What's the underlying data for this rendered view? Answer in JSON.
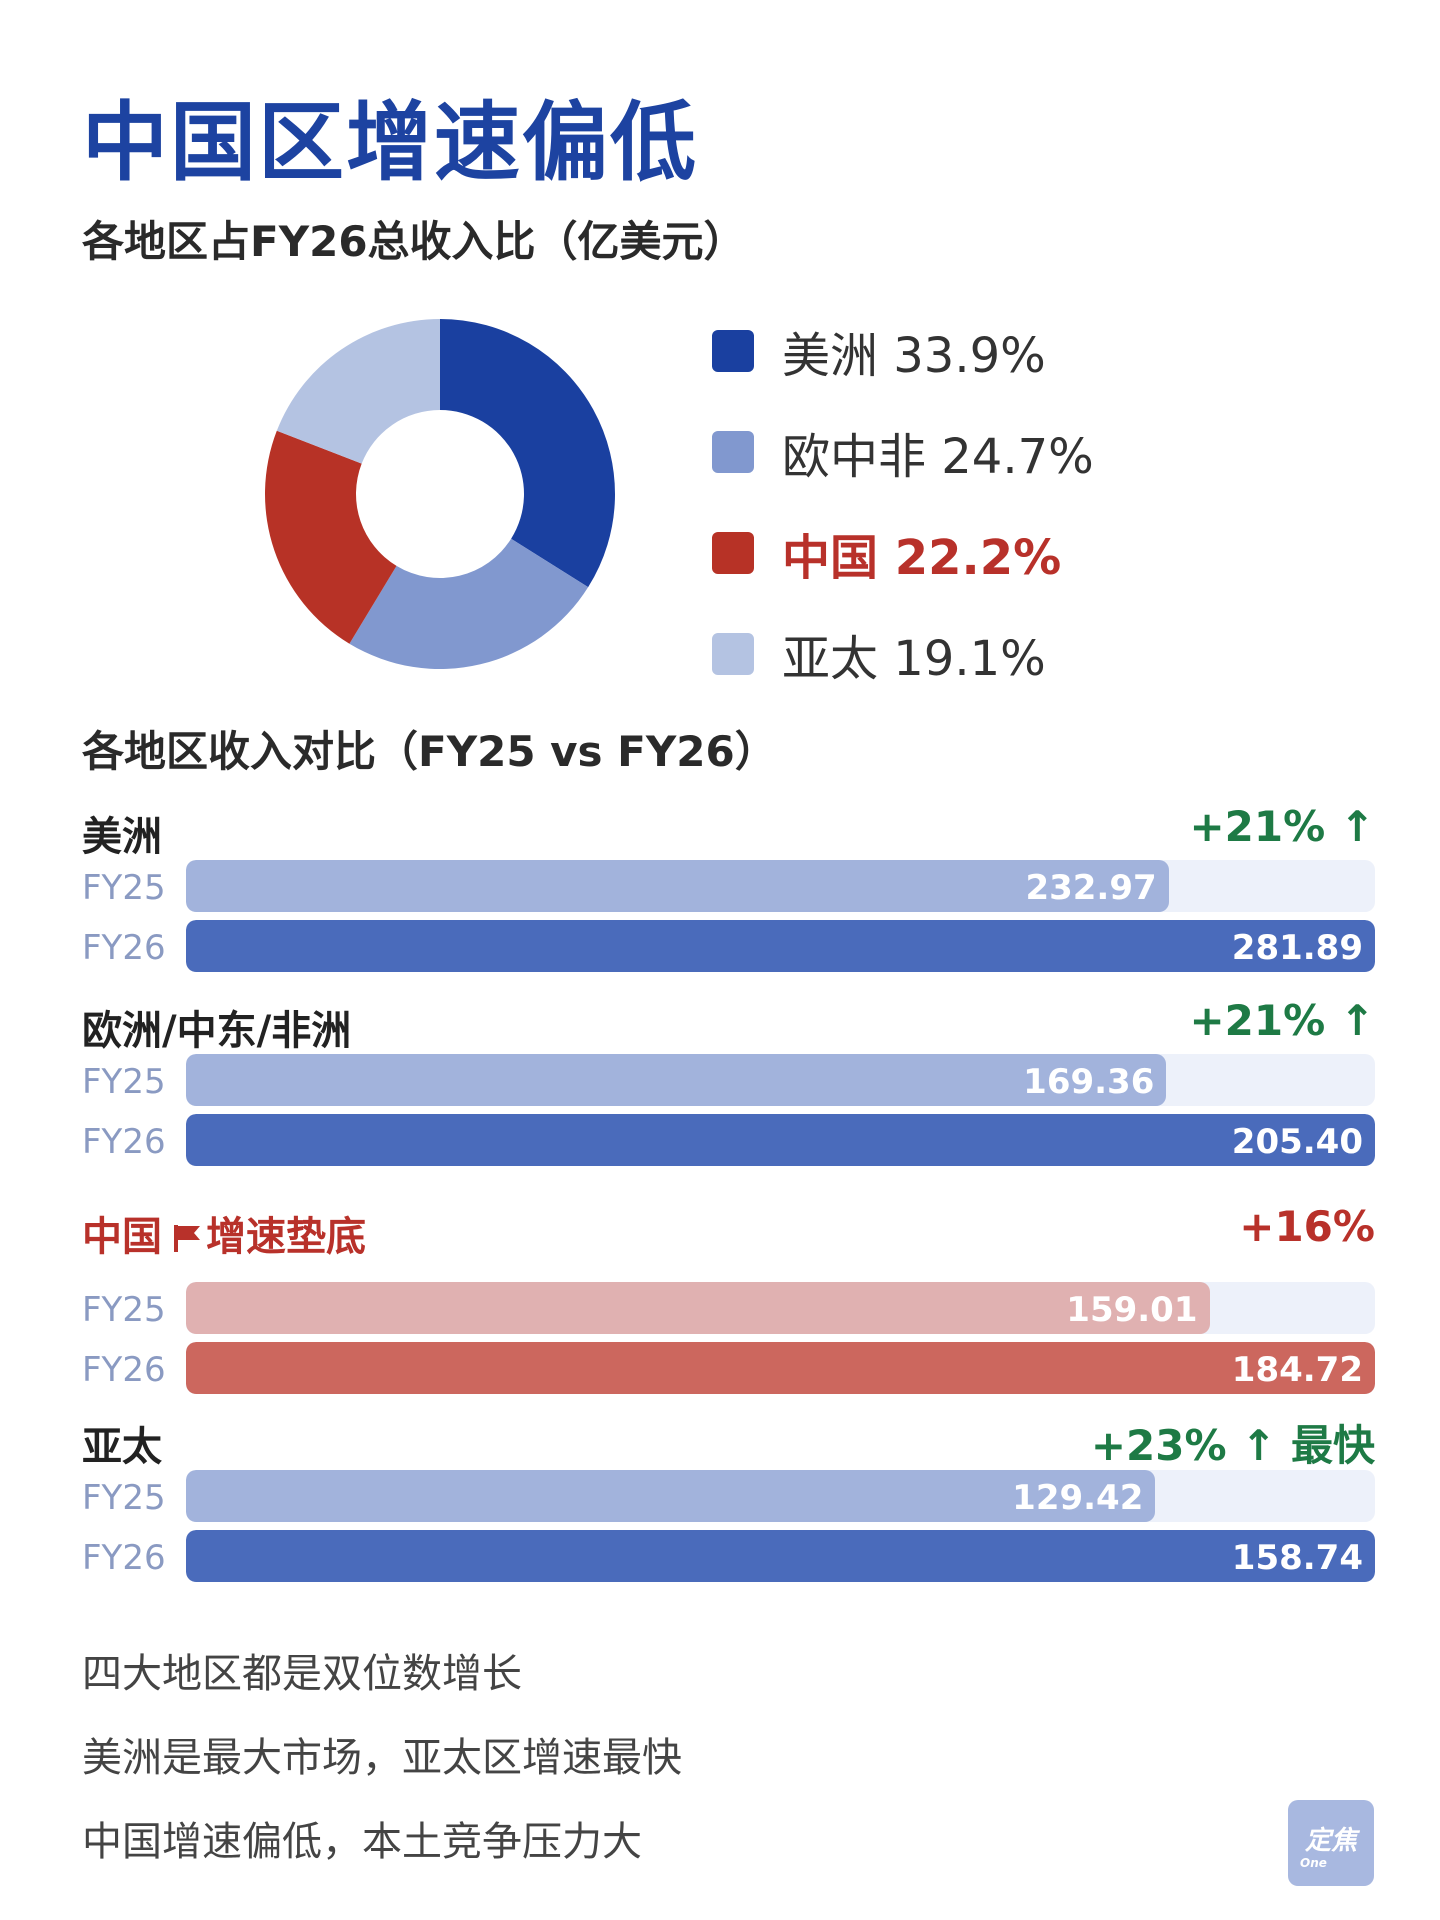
{
  "title": "中国区增速偏低",
  "donut": {
    "title": "各地区占FY26总收入比（亿美元）",
    "center_label": "",
    "legend": [
      {
        "label": "美洲 33.9%",
        "color": "#1a40a0"
      },
      {
        "label": "欧中非 24.7%",
        "color": "#8198cf"
      },
      {
        "label": "中国 22.2%",
        "color": "#b73226"
      },
      {
        "label": "亚太 19.1%",
        "color": "#b4c3e2"
      }
    ]
  },
  "bars": {
    "title": "各地区收入对比（FY25 vs FY26）",
    "regions": [
      {
        "name": "美洲",
        "growth": "+21% ↑",
        "rows": [
          {
            "year": "FY25",
            "value_label": "232.97"
          },
          {
            "year": "FY26",
            "value_label": "281.89"
          }
        ]
      },
      {
        "name": "欧洲/中东/非洲",
        "growth": "+21% ↑",
        "rows": [
          {
            "year": "FY25",
            "value_label": "169.36"
          },
          {
            "year": "FY26",
            "value_label": "205.40"
          }
        ]
      },
      {
        "name": "中国",
        "name_suffix": "增速垫底",
        "icon": "flag-icon",
        "growth": "+16%",
        "rows": [
          {
            "year": "FY25",
            "value_label": "159.01"
          },
          {
            "year": "FY26",
            "value_label": "184.72"
          }
        ]
      },
      {
        "name": "亚太",
        "growth": "+23% ↑ 最快",
        "rows": [
          {
            "year": "FY25",
            "value_label": "129.42"
          },
          {
            "year": "FY26",
            "value_label": "158.74"
          }
        ]
      }
    ]
  },
  "notes": [
    "四大地区都是双位数增长",
    "美洲是最大市场，亚太区增速最快",
    "中国增速偏低，本土竞争压力大"
  ],
  "logo": {
    "text": "定焦",
    "sub": "One"
  },
  "chart_data": [
    {
      "type": "pie",
      "title": "各地区占FY26总收入比（亿美元）",
      "categories": [
        "美洲",
        "欧中非",
        "中国",
        "亚太"
      ],
      "values": [
        33.9,
        24.7,
        22.2,
        19.1
      ],
      "colors": [
        "#1a40a0",
        "#8198cf",
        "#b73226",
        "#b4c3e2"
      ],
      "legend": "right"
    },
    {
      "type": "bar",
      "title": "各地区收入对比（FY25 vs FY26）",
      "categories": [
        "美洲",
        "欧洲/中东/非洲",
        "中国",
        "亚太"
      ],
      "series": [
        {
          "name": "FY25",
          "values": [
            232.97,
            169.36,
            159.01,
            129.42
          ]
        },
        {
          "name": "FY26",
          "values": [
            281.89,
            205.4,
            184.72,
            158.74
          ]
        }
      ],
      "growth": [
        "+21%",
        "+21%",
        "+16%",
        "+23%"
      ]
    }
  ]
}
